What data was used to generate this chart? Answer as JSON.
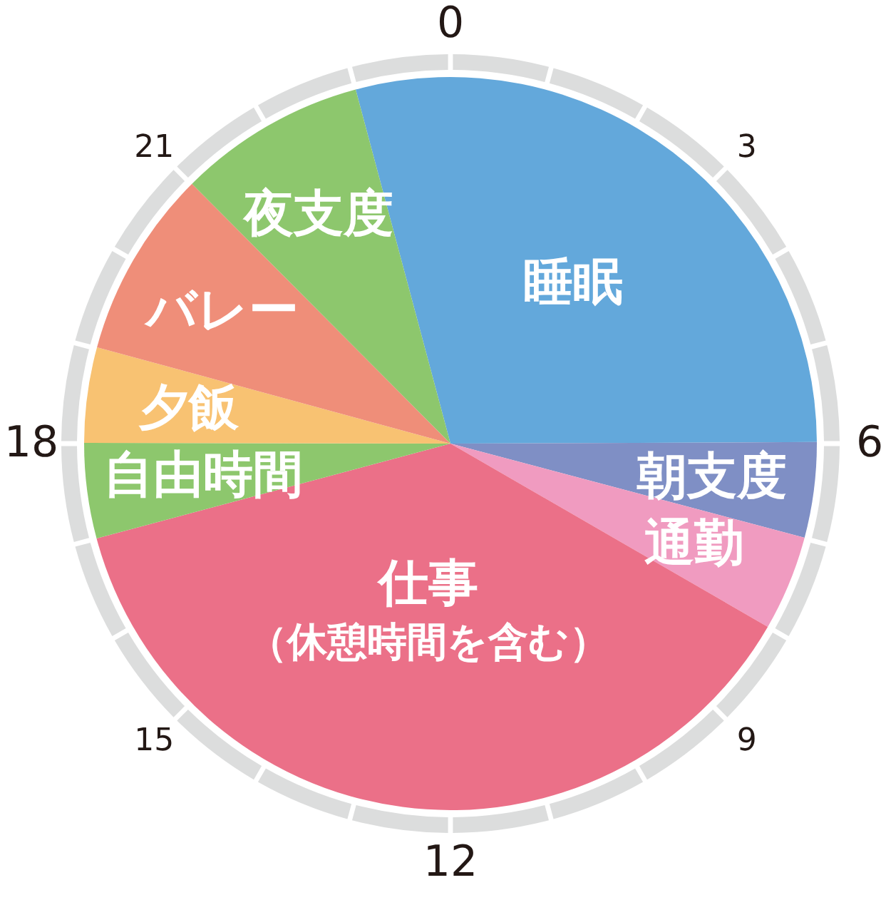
{
  "chart_data": {
    "type": "pie",
    "categories": [
      "睡眠",
      "朝支度",
      "通勤",
      "仕事（休憩時間を含む）",
      "自由時間",
      "夕飯",
      "バレー",
      "夜支度"
    ],
    "values": [
      29.1,
      4.2,
      4.2,
      37.5,
      4.2,
      4.2,
      8.3,
      8.3
    ],
    "colors": [
      "#63a8db",
      "#7f8fc5",
      "#f09bc0",
      "#eb7088",
      "#8dc76d",
      "#f8c272",
      "#ef8e79",
      "#8dc76d"
    ],
    "annotations": [
      "0",
      "3",
      "6",
      "9",
      "12",
      "15",
      "18",
      "21"
    ]
  }
}
